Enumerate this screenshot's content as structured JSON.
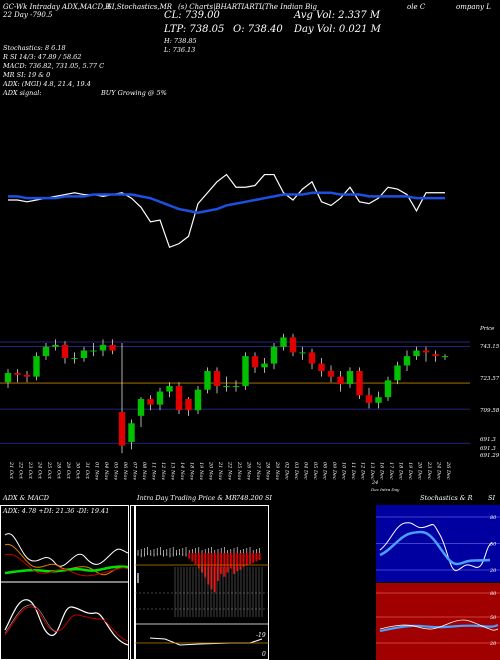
{
  "header": {
    "left_line1": "GC-Wk Intraday ADX,MACD,R",
    "left_line2": "SI,Stochastics,MR",
    "symbol_line": "(s) Charts|BHARTIARTL",
    "company_1": "(The Indian Big",
    "company_2": "ole C",
    "company_3": "ompany L",
    "date_line": "22 Day        -790.5"
  },
  "ohlc": {
    "close": "CL: 739.00",
    "ltp": "LTP: 738.05",
    "open": "O: 738.40",
    "high": "H: 738.85",
    "low": "L: 736.13",
    "avg_vol": "Avg Vol: 2.337 M",
    "day_vol": "Day Vol: 0.021 M"
  },
  "indicators": {
    "stochastics": "Stochastics: 8          6.18",
    "rsi": "R                   SI 14/3: 47.89 / 58.62",
    "macd": "MACD: 736.82, 731.05, 5.77 C",
    "mr": "MR                  SI: 19 & 0",
    "adx": "ADX:                (MGI) 4.8, 21.4, 19.4",
    "adx_signal_label": "ADX  signal:",
    "adx_signal": "BUY Growing @ 5%"
  },
  "price_labels": [
    "Price",
    "743.15",
    "723.57",
    "709.58",
    "691.3",
    "691.3",
    "691.29"
  ],
  "date_labels": [
    "21 Oct",
    "22 Oct",
    "23 Oct",
    "24 Oct",
    "25 Oct",
    "28 Oct",
    "29 Oct",
    "30 Oct",
    "31 Oct",
    "01 Nov",
    "04 Nov",
    "05 Nov",
    "06 Nov",
    "07 Nov",
    "08 Nov",
    "11 Nov",
    "12 Nov",
    "13 Nov",
    "14 Nov",
    "18 Nov",
    "19 Nov",
    "20 Nov",
    "21 Nov",
    "22 Nov",
    "25 Nov",
    "26 Nov",
    "27 Nov",
    "28 Nov",
    "29 Nov",
    "02 Dec",
    "03 Dec",
    "04 Dec",
    "05 Dec",
    "06 Dec",
    "09 Dec",
    "10 Dec",
    "11 Dec",
    "12 Dec",
    "13 Dec",
    "16 Dec",
    "17 Dec",
    "18 Dec",
    "19 Dec",
    "20 Dec",
    "23 Dec",
    "24 Dec",
    "26 Dec"
  ],
  "date_extra_1": "24",
  "date_extra_2": "Dec Intra Day",
  "panels": {
    "adx_title": "ADX & MACD",
    "adx_values": "ADX: 4.78  +DI: 21.36  -DI: 19.41",
    "intraday_title": "Intra Day Trading Price & MR",
    "intraday_value": "748.200 SI",
    "intraday_bottom": "-19",
    "intraday_zero": "0",
    "stoch_title": "Stochastics & R",
    "stoch_title_2": "SI",
    "stoch_levels": [
      "80",
      "50",
      "20"
    ],
    "rsi_levels": [
      "80",
      "50",
      "20"
    ]
  },
  "colors": {
    "up": "#00c000",
    "down": "#e00000",
    "ma_line": "#1e50e0",
    "sto_bg": "#0000a0",
    "rsi_bg": "#a00000"
  },
  "chart_data": {
    "type": "candlestick",
    "dates": [
      "21 Oct",
      "22 Oct",
      "23 Oct",
      "24 Oct",
      "25 Oct",
      "28 Oct",
      "29 Oct",
      "30 Oct",
      "31 Oct",
      "01 Nov",
      "04 Nov",
      "05 Nov",
      "06 Nov",
      "07 Nov",
      "08 Nov",
      "11 Nov",
      "12 Nov",
      "13 Nov",
      "14 Nov",
      "18 Nov",
      "19 Nov",
      "20 Nov",
      "21 Nov",
      "22 Nov",
      "25 Nov",
      "26 Nov",
      "27 Nov",
      "28 Nov",
      "29 Nov",
      "02 Dec",
      "03 Dec",
      "04 Dec",
      "05 Dec",
      "06 Dec",
      "09 Dec",
      "10 Dec",
      "11 Dec",
      "12 Dec",
      "13 Dec",
      "16 Dec",
      "17 Dec",
      "18 Dec",
      "19 Dec",
      "20 Dec",
      "23 Dec",
      "24 Dec",
      "26 Dec"
    ],
    "open": [
      724,
      729,
      728,
      727,
      738,
      743,
      744,
      737,
      737,
      741,
      741,
      744,
      708,
      692,
      706,
      715,
      712,
      719,
      722,
      715,
      709,
      720,
      730,
      722,
      722,
      722,
      738,
      732,
      734,
      743,
      748,
      740,
      740,
      734,
      730,
      727,
      723,
      730,
      717,
      713,
      716,
      725,
      733,
      738,
      741,
      739,
      738
    ],
    "close": [
      729,
      728,
      727,
      738,
      743,
      744,
      737,
      737,
      741,
      741,
      744,
      741,
      690,
      702,
      715,
      712,
      719,
      722,
      709,
      709,
      720,
      730,
      722,
      722,
      722,
      738,
      732,
      734,
      743,
      748,
      740,
      740,
      734,
      730,
      727,
      723,
      730,
      717,
      713,
      716,
      725,
      733,
      738,
      741,
      740,
      738,
      738
    ],
    "high": [
      731,
      731,
      730,
      740,
      745,
      747,
      746,
      740,
      743,
      745,
      747,
      747,
      745,
      704,
      716,
      717,
      721,
      724,
      724,
      716,
      722,
      732,
      732,
      727,
      725,
      740,
      740,
      737,
      745,
      750,
      750,
      743,
      742,
      737,
      733,
      730,
      732,
      732,
      721,
      719,
      727,
      735,
      741,
      743,
      743,
      741,
      739
    ],
    "low": [
      721,
      724,
      724,
      725,
      736,
      741,
      734,
      734,
      735,
      738,
      738,
      739,
      686,
      688,
      700,
      709,
      709,
      716,
      707,
      706,
      707,
      718,
      718,
      719,
      719,
      720,
      729,
      729,
      731,
      741,
      738,
      736,
      731,
      727,
      724,
      719,
      721,
      715,
      710,
      710,
      714,
      723,
      730,
      736,
      735,
      735,
      736
    ],
    "ma": [
      737,
      736,
      736,
      735,
      735,
      736,
      737,
      736,
      735,
      735,
      734,
      733,
      730,
      726,
      722,
      719,
      717,
      716,
      716,
      715,
      715,
      716,
      717,
      718,
      719,
      720,
      721,
      722,
      723,
      724,
      724,
      725,
      726,
      726,
      726,
      726,
      726,
      727,
      727,
      727,
      728,
      729,
      730,
      731,
      731,
      731,
      731
    ],
    "price_levels": [
      743.15,
      723.57,
      709.58,
      691.3
    ],
    "ylim": [
      685,
      752
    ],
    "rsi_top_line": [
      48,
      48,
      47,
      48,
      49,
      50,
      51,
      52,
      51,
      51,
      50,
      51,
      52,
      49,
      44,
      36,
      37,
      22,
      24,
      28,
      46,
      52,
      58,
      62,
      55,
      55,
      56,
      62,
      62,
      52,
      48,
      54,
      58,
      47,
      45,
      49,
      55,
      47,
      46,
      49,
      55,
      54,
      51,
      42,
      52,
      52,
      52
    ],
    "rsi_top_ma": [
      50,
      50,
      49,
      49,
      49,
      49,
      50,
      50,
      50,
      51,
      51,
      51,
      51,
      51,
      50,
      49,
      47,
      45,
      43,
      42,
      41,
      42,
      43,
      45,
      46,
      47,
      48,
      49,
      50,
      51,
      51,
      51,
      52,
      52,
      52,
      51,
      51,
      51,
      50,
      50,
      50,
      50,
      50,
      49,
      49,
      49,
      49
    ]
  }
}
